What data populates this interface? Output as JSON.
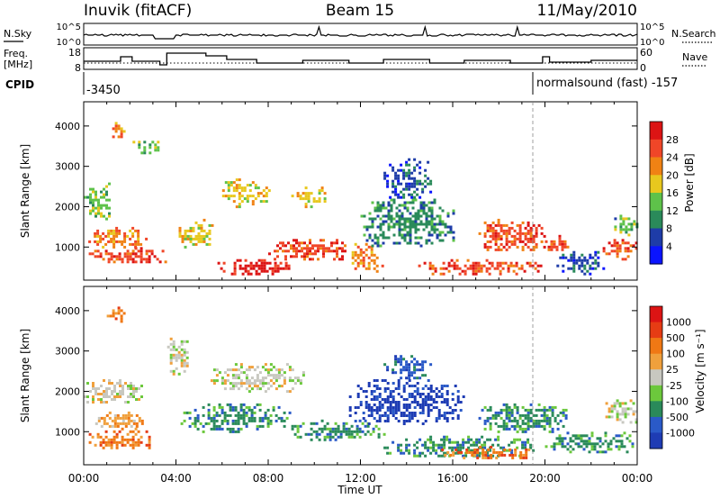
{
  "header": {
    "station": "Inuvik (fitACF)",
    "beam": "Beam 15",
    "date": "11/May/2010"
  },
  "top_panels": {
    "nsky_label": "N.Sky",
    "nsearch_label": "N.Search",
    "nsky_ticks": [
      "10^5",
      "10^0"
    ],
    "freq_label_1": "Freq.",
    "freq_label_2": "[MHz]",
    "freq_ticks": [
      "18",
      "8"
    ],
    "nave_label": "Nave",
    "nave_ticks": [
      "60",
      "0"
    ],
    "cpid_label": "CPID",
    "cpid_left": "-3450",
    "cpid_right": "normalsound (fast) -157"
  },
  "chart_data": [
    {
      "type": "heatmap",
      "name": "power",
      "ylabel": "Slant Range [km]",
      "yticks": [
        1000,
        2000,
        3000,
        4000
      ],
      "ylim": [
        180,
        4600
      ],
      "xlim": [
        0,
        24
      ],
      "colorbar": {
        "label": "Power [dB]",
        "ticks": [
          "4",
          "8",
          "12",
          "16",
          "20",
          "24",
          "28"
        ],
        "colors": [
          "#0a14ff",
          "#1e3ca8",
          "#2a8a5a",
          "#5ec24a",
          "#e8c81e",
          "#f08214",
          "#f04628",
          "#dc1414"
        ]
      },
      "blobs": [
        {
          "t": 0.1,
          "t2": 3.7,
          "r": 600,
          "r2": 1000,
          "c": 6
        },
        {
          "t": 0.2,
          "t2": 2.8,
          "r": 1000,
          "r2": 1500,
          "c": 5
        },
        {
          "t": 0.0,
          "t2": 1.2,
          "r": 1700,
          "r2": 2600,
          "c": 3
        },
        {
          "t": 1.0,
          "t2": 1.8,
          "r": 3700,
          "r2": 4100,
          "c": 5
        },
        {
          "t": 2.0,
          "t2": 3.2,
          "r": 3300,
          "r2": 3700,
          "c": 3
        },
        {
          "t": 4.0,
          "t2": 5.6,
          "r": 1000,
          "r2": 1700,
          "c": 4
        },
        {
          "t": 5.8,
          "t2": 9.0,
          "r": 350,
          "r2": 700,
          "c": 7
        },
        {
          "t": 6.0,
          "t2": 8.0,
          "r": 2000,
          "r2": 2700,
          "c": 4
        },
        {
          "t": 8.0,
          "t2": 11.5,
          "r": 700,
          "r2": 1200,
          "c": 6
        },
        {
          "t": 9.0,
          "t2": 10.5,
          "r": 2000,
          "r2": 2500,
          "c": 4
        },
        {
          "t": 11.5,
          "t2": 13.0,
          "r": 400,
          "r2": 1100,
          "c": 5
        },
        {
          "t": 12.0,
          "t2": 16.0,
          "r": 1000,
          "r2": 2200,
          "c": 2
        },
        {
          "t": 13.0,
          "t2": 15.0,
          "r": 2200,
          "r2": 3200,
          "c": 1
        },
        {
          "t": 14.5,
          "t2": 19.8,
          "r": 350,
          "r2": 700,
          "c": 6
        },
        {
          "t": 17.0,
          "t2": 20.0,
          "r": 900,
          "r2": 1700,
          "c": 6
        },
        {
          "t": 20.0,
          "t2": 21.0,
          "r": 900,
          "r2": 1300,
          "c": 6
        },
        {
          "t": 20.5,
          "t2": 22.5,
          "r": 350,
          "r2": 900,
          "c": 1
        },
        {
          "t": 22.5,
          "t2": 24.0,
          "r": 700,
          "r2": 1200,
          "c": 6
        },
        {
          "t": 23.0,
          "t2": 24.0,
          "r": 1300,
          "r2": 1800,
          "c": 3
        }
      ]
    },
    {
      "type": "heatmap",
      "name": "velocity",
      "ylabel": "Slant Range [km]",
      "yticks": [
        1000,
        2000,
        3000,
        4000
      ],
      "ylim": [
        180,
        4600
      ],
      "xlim": [
        0,
        24
      ],
      "colorbar": {
        "label": "Velocity [m s⁻¹]",
        "ticks": [
          "1000",
          "500",
          "100",
          "25",
          "-25",
          "-100",
          "-500",
          "-1000"
        ],
        "colors": [
          "#1e3cb4",
          "#2a5ac8",
          "#2a8a5a",
          "#6cc83c",
          "#c8c8c0",
          "#f0a03c",
          "#f07814",
          "#e63c14",
          "#dc1414"
        ]
      },
      "blobs": [
        {
          "t": 0.1,
          "t2": 3.0,
          "r": 600,
          "r2": 1100,
          "c": 6
        },
        {
          "t": 0.5,
          "t2": 2.5,
          "r": 1100,
          "r2": 1500,
          "c": 5
        },
        {
          "t": 0.0,
          "t2": 2.5,
          "r": 1700,
          "r2": 2300,
          "c": 4
        },
        {
          "t": 1.0,
          "t2": 1.8,
          "r": 3700,
          "r2": 4100,
          "c": 6
        },
        {
          "t": 3.5,
          "t2": 4.5,
          "r": 2400,
          "r2": 3400,
          "c": 4
        },
        {
          "t": 4.2,
          "t2": 9.0,
          "r": 1000,
          "r2": 1700,
          "c": 2
        },
        {
          "t": 5.5,
          "t2": 9.5,
          "r": 2000,
          "r2": 2700,
          "c": 4
        },
        {
          "t": 9.0,
          "t2": 13.0,
          "r": 800,
          "r2": 1300,
          "c": 2
        },
        {
          "t": 11.5,
          "t2": 16.5,
          "r": 1200,
          "r2": 2300,
          "c": 0
        },
        {
          "t": 13.0,
          "t2": 15.0,
          "r": 2300,
          "r2": 2900,
          "c": 1
        },
        {
          "t": 13.0,
          "t2": 19.5,
          "r": 400,
          "r2": 900,
          "c": 2
        },
        {
          "t": 15.5,
          "t2": 19.5,
          "r": 350,
          "r2": 650,
          "c": 6
        },
        {
          "t": 17.0,
          "t2": 21.0,
          "r": 1000,
          "r2": 1700,
          "c": 2
        },
        {
          "t": 20.0,
          "t2": 24.0,
          "r": 500,
          "r2": 1000,
          "c": 2
        },
        {
          "t": 22.5,
          "t2": 24.0,
          "r": 1200,
          "r2": 1800,
          "c": 4
        }
      ]
    }
  ],
  "xaxis": {
    "ticks": [
      "00:00",
      "04:00",
      "08:00",
      "12:00",
      "16:00",
      "20:00",
      "00:00"
    ],
    "label": "Time UT"
  }
}
